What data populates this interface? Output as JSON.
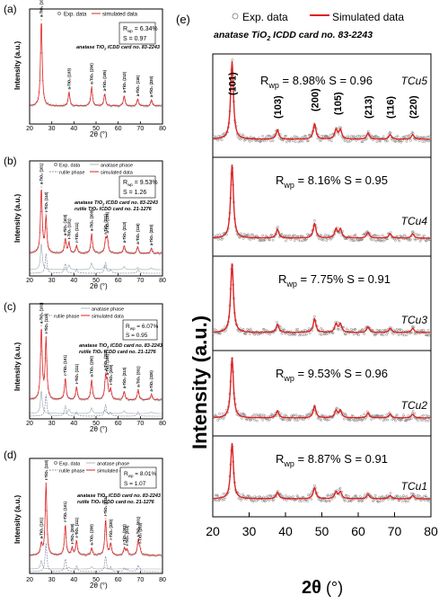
{
  "figure": {
    "panels": [
      {
        "tag": "(a)",
        "legend": [
          "Exp. data",
          "simulated data"
        ],
        "stats": [
          "R",
          "wp",
          " = 6.34%",
          "S = 0.97"
        ],
        "card": "anatase TiO",
        "card_sub": "2",
        "card_rest": " ICDD card no. 83-2243",
        "card2": "",
        "ylabel": "Intensity (a.u.)",
        "xlabel": "2θ (°)",
        "peaks": [
          "a-TiO₂ (101)",
          "a-TiO₂ (103)",
          "a-TiO₂ (200)",
          "a-TiO₂ (105)",
          "a-TiO₂ (213)",
          "a-TiO₂ (116)",
          "a-TiO₂ (220)"
        ]
      },
      {
        "tag": "(b)",
        "legend": [
          "Exp. data",
          "anatase phase",
          "rutile phase",
          "simulated data"
        ],
        "stats": [
          "R",
          "wp",
          " = 9.53%",
          "S = 1.26"
        ],
        "card": "anatase TiO",
        "card_sub": "2",
        "card_rest": " ICDD card no. 83-2243",
        "card2": "rutile TiO₂ ICDD card no. 21-1276",
        "ylabel": "Intensity (a.u.)",
        "xlabel": "2θ (°)",
        "peaks": [
          "a-TiO₂ (101)",
          "r-TiO₂ (110)",
          "a-TiO₂ (103)",
          "r-TiO₂ (101)",
          "r-TiO₂ (111)",
          "a-TiO₂ (200)",
          "r-TiO₂ (211)",
          "a-TiO₂ (105)",
          "a-TiO₂ (213)",
          "a-TiO₂ (116)",
          "a-TiO₂ (220)"
        ]
      },
      {
        "tag": "(c)",
        "legend": [
          "anatase phase",
          "rutile phase",
          "simulated data"
        ],
        "stats": [
          "R",
          "wp",
          " = 6.07%",
          "S = 0.95"
        ],
        "card": "anatase TiO",
        "card_sub": "2",
        "card_rest": " ICDD card no. 83-2243",
        "card2": "rutile TiO₂ ICDD card no. 21-1276",
        "ylabel": "Intensity (a.u.)",
        "xlabel": "2θ (°)",
        "peaks": [
          "a-TiO₂ (101)",
          "r-TiO₂ (110)",
          "r-TiO₂ (101)",
          "r-TiO₂ (111)",
          "a-TiO₂ (200)",
          "r-TiO₂ (211)",
          "a-TiO₂ (105)",
          "r-TiO₂ (220)",
          "a-TiO₂ (213)",
          "a-TiO₂ (301)",
          "a-TiO₂ (220)"
        ]
      },
      {
        "tag": "(d)",
        "legend": [
          "Exp. data",
          "anatase phase",
          "rutile phase",
          "simulated data"
        ],
        "stats": [
          "R",
          "wp",
          " = 8.01%",
          "S = 1.07"
        ],
        "card": "anatase TiO",
        "card_sub": "2",
        "card_rest": " ICDD card no. 83-2243",
        "card2": "rutile TiO₂ ICDD card no. 21-1276",
        "ylabel": "Intensity (a.u.)",
        "xlabel": "2θ (°)",
        "peaks": [
          "a-TiO₂ (101)",
          "r-TiO₂ (110)",
          "r-TiO₂ (101)",
          "r-TiO₂ (200)",
          "r-TiO₂ (111)",
          "a-TiO₂ (200)",
          "r-TiO₂ (211)",
          "r-TiO₂ (220)",
          "r-TiO₂ (002)",
          "r-TiO₂ (310)",
          "r-TiO₂ (301)",
          "r-TiO₂ (202)"
        ]
      }
    ],
    "right": {
      "tag": "(e)",
      "legend": [
        "Exp. data",
        "Simulated data"
      ],
      "title_a": "anatase TiO",
      "title_sub": "2",
      "title_b": " ICDD card no. 83-2243",
      "ylabel": "Intensity (a.u.)",
      "xlabel_main": "2θ",
      "xlabel_unit": " (°)",
      "hkl": [
        "(101)",
        "(103)",
        "(200)",
        "(105)",
        "(213)",
        "(116)",
        "(220)"
      ],
      "samples": [
        {
          "name": "TCu5",
          "rwp": "= 8.98% S = 0.96"
        },
        {
          "name": "TCu4",
          "rwp": "= 8.16% S = 0.95"
        },
        {
          "name": "TCu3",
          "rwp": "= 7.75% S = 0.91"
        },
        {
          "name": "TCu2",
          "rwp": "= 9.53% S = 0.96"
        },
        {
          "name": "TCu1",
          "rwp": "= 8.87% S = 0.91"
        }
      ]
    }
  },
  "chart_data": [
    {
      "type": "line",
      "title": "(a)",
      "xlabel": "2θ (°)",
      "ylabel": "Intensity (a.u.)",
      "xlim": [
        20,
        80
      ],
      "xticks": [
        20,
        30,
        40,
        50,
        60,
        70,
        80
      ],
      "peak_positions": [
        25.3,
        37.8,
        48.0,
        53.9,
        62.7,
        68.8,
        75.0
      ],
      "peak_heights": [
        1.0,
        0.16,
        0.22,
        0.14,
        0.12,
        0.08,
        0.07
      ],
      "series": [
        {
          "name": "Exp. data"
        },
        {
          "name": "simulated data"
        }
      ]
    },
    {
      "type": "line",
      "title": "(b)",
      "xlabel": "2θ (°)",
      "ylabel": "Intensity (a.u.)",
      "xlim": [
        20,
        80
      ],
      "xticks": [
        20,
        30,
        40,
        50,
        60,
        70,
        80
      ],
      "peak_positions": [
        25.3,
        27.4,
        36.1,
        37.8,
        41.2,
        48.0,
        54.3,
        55.1,
        62.7,
        68.8,
        75.0
      ],
      "peak_heights": [
        1.0,
        0.55,
        0.22,
        0.16,
        0.12,
        0.3,
        0.2,
        0.22,
        0.12,
        0.1,
        0.08
      ],
      "series": [
        {
          "name": "Exp. data"
        },
        {
          "name": "anatase phase"
        },
        {
          "name": "rutile phase"
        },
        {
          "name": "simulated data"
        }
      ]
    },
    {
      "type": "line",
      "title": "(c)",
      "xlabel": "2θ (°)",
      "ylabel": "Intensity (a.u.)",
      "xlim": [
        20,
        80
      ],
      "xticks": [
        20,
        30,
        40,
        50,
        60,
        70,
        80
      ],
      "peak_positions": [
        25.3,
        27.4,
        36.1,
        41.2,
        48.0,
        54.3,
        55.1,
        56.6,
        62.7,
        69.0,
        75.0
      ],
      "peak_heights": [
        1.0,
        0.85,
        0.3,
        0.18,
        0.28,
        0.32,
        0.22,
        0.14,
        0.12,
        0.14,
        0.08
      ],
      "series": [
        {
          "name": "anatase phase"
        },
        {
          "name": "rutile phase"
        },
        {
          "name": "simulated data"
        }
      ]
    },
    {
      "type": "line",
      "title": "(d)",
      "xlabel": "2θ (°)",
      "ylabel": "Intensity (a.u.)",
      "xlim": [
        20,
        80
      ],
      "xticks": [
        20,
        30,
        40,
        50,
        60,
        70,
        80
      ],
      "peak_positions": [
        25.3,
        27.4,
        36.1,
        39.2,
        41.2,
        48.0,
        54.3,
        56.6,
        62.8,
        64.0,
        69.0,
        69.8
      ],
      "peak_heights": [
        0.15,
        1.0,
        0.42,
        0.1,
        0.2,
        0.1,
        0.5,
        0.16,
        0.1,
        0.08,
        0.2,
        0.08
      ],
      "series": [
        {
          "name": "Exp. data"
        },
        {
          "name": "anatase phase"
        },
        {
          "name": "rutile phase"
        },
        {
          "name": "simulated data"
        }
      ]
    },
    {
      "type": "line",
      "title": "(e)",
      "xlabel": "2θ (°)",
      "ylabel": "Intensity (a.u.)",
      "xlim": [
        20,
        80
      ],
      "xticks": [
        20,
        30,
        40,
        50,
        60,
        70,
        80
      ],
      "peak_positions": [
        25.3,
        37.8,
        48.0,
        53.9,
        55.1,
        62.7,
        68.8,
        75.0
      ],
      "peak_heights": [
        1.0,
        0.12,
        0.2,
        0.12,
        0.12,
        0.08,
        0.06,
        0.06
      ],
      "series": [
        {
          "name": "TCu5"
        },
        {
          "name": "TCu4"
        },
        {
          "name": "TCu3"
        },
        {
          "name": "TCu2"
        },
        {
          "name": "TCu1"
        }
      ]
    }
  ]
}
